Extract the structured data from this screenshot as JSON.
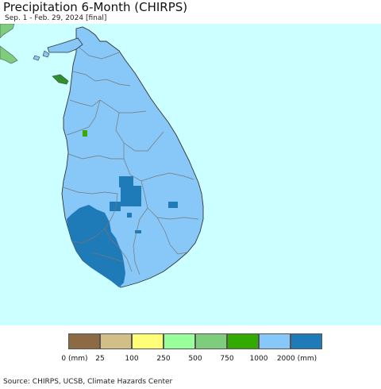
{
  "title": "Precipitation 6-Month (CHIRPS)",
  "subtitle": "Sep. 1 - Feb. 29, 2024 [final]",
  "map": {
    "ocean_color": "#ccffff",
    "land_color": "#88c8f8",
    "heavy_color": "#1f7ab8",
    "neighbor_land_color": "#7dcd7d",
    "small_patch_color": "#3aaa00",
    "border_color": "#777777"
  },
  "legend": {
    "swatches": [
      {
        "color": "#8b6a44"
      },
      {
        "color": "#d2bf88"
      },
      {
        "color": "#ffff77"
      },
      {
        "color": "#99ff99"
      },
      {
        "color": "#7dcd7d"
      },
      {
        "color": "#33aa00"
      },
      {
        "color": "#88c8f8"
      },
      {
        "color": "#1f7ab8"
      }
    ],
    "labels": [
      "0 (mm)",
      "25",
      "100",
      "250",
      "500",
      "750",
      "1000",
      "2000 (mm)"
    ]
  },
  "source": "Source: CHIRPS, UCSB, Climate Hazards Center"
}
